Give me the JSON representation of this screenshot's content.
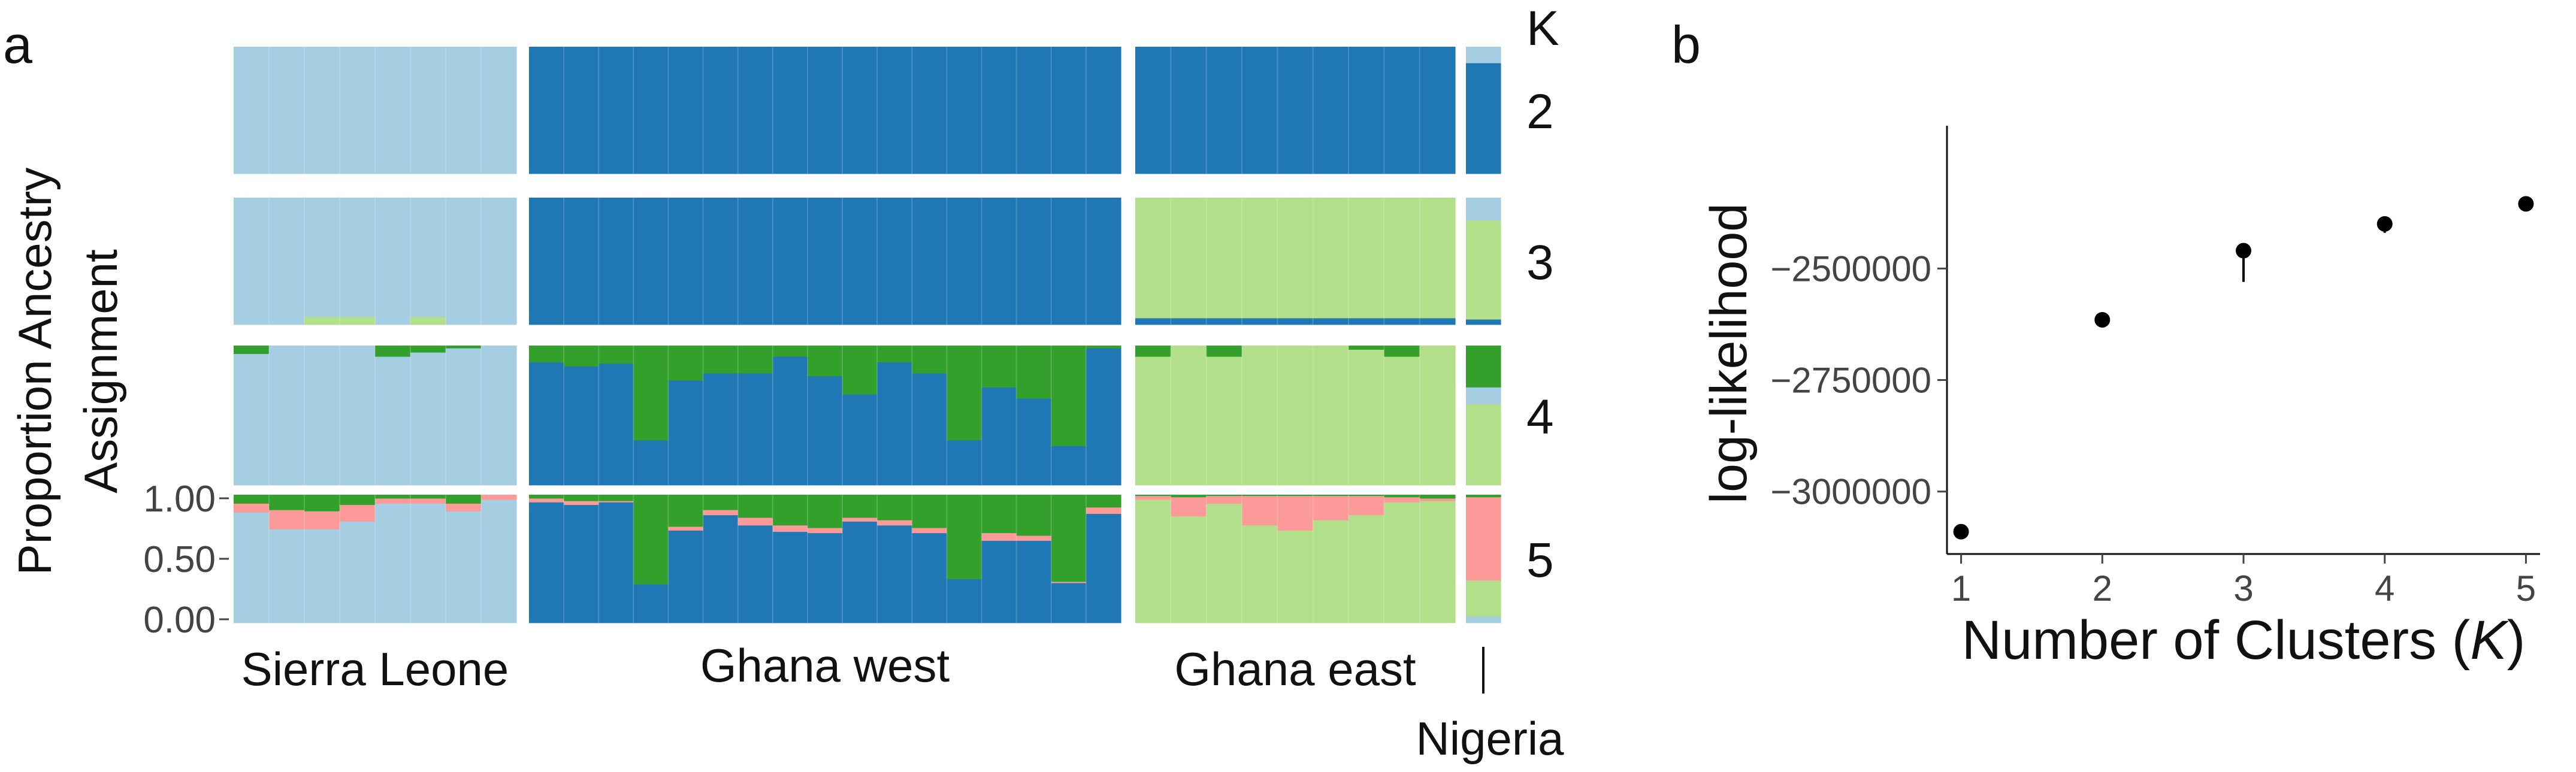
{
  "panel_a": {
    "panel_label": "a",
    "ylabel_line1": "Proportion Ancestry",
    "ylabel_line2": "Assignment",
    "k_header": "K",
    "y_ticks": [
      "1.00",
      "0.50",
      "0.00"
    ],
    "colors": {
      "light_blue": "#a6cee3",
      "dark_blue": "#1f78b4",
      "light_green": "#b2df8a",
      "dark_green": "#33a02c",
      "pink": "#fb9a99"
    }
  },
  "panel_b": {
    "panel_label": "b",
    "ylabel": "log-likelihood",
    "xlabel_prefix": "Number of Clusters (",
    "xlabel_var": "K",
    "xlabel_suffix": ")"
  },
  "chart_data": [
    {
      "type": "bar",
      "subtype": "stacked-structure-plot",
      "populations": [
        {
          "name": "Sierra Leone",
          "n": 8
        },
        {
          "name": "Ghana west",
          "n": 17
        },
        {
          "name": "Ghana east",
          "n": 9
        },
        {
          "name": "Nigeria",
          "n": 1
        }
      ],
      "ylim": [
        0,
        1
      ],
      "rows": [
        {
          "k": 2,
          "pops": [
            {
              "n": 8,
              "layers": [
                {
                  "c": "light_blue",
                  "v": [
                    1,
                    1,
                    1,
                    1,
                    1,
                    1,
                    1,
                    1
                  ]
                }
              ]
            },
            {
              "n": 17,
              "layers": [
                {
                  "c": "dark_blue",
                  "v": [
                    1,
                    1,
                    1,
                    1,
                    1,
                    1,
                    1,
                    1,
                    1,
                    1,
                    1,
                    1,
                    1,
                    1,
                    1,
                    1,
                    1
                  ]
                }
              ]
            },
            {
              "n": 9,
              "layers": [
                {
                  "c": "dark_blue",
                  "v": [
                    1,
                    1,
                    1,
                    1,
                    1,
                    1,
                    1,
                    1,
                    1
                  ]
                }
              ]
            },
            {
              "n": 1,
              "layers": [
                {
                  "c": "light_blue",
                  "v": [
                    0.13
                  ]
                },
                {
                  "c": "dark_blue",
                  "v": [
                    0.87
                  ]
                }
              ]
            }
          ]
        },
        {
          "k": 3,
          "pops": [
            {
              "n": 8,
              "layers": [
                {
                  "c": "light_blue",
                  "v": [
                    1,
                    1,
                    0.94,
                    0.94,
                    1,
                    0.94,
                    1,
                    1
                  ]
                },
                {
                  "c": "light_green",
                  "v": [
                    0,
                    0,
                    0.06,
                    0.06,
                    0,
                    0.06,
                    0,
                    0
                  ]
                }
              ]
            },
            {
              "n": 17,
              "layers": [
                {
                  "c": "dark_blue",
                  "v": [
                    1,
                    1,
                    1,
                    1,
                    1,
                    1,
                    1,
                    1,
                    1,
                    1,
                    1,
                    1,
                    1,
                    1,
                    1,
                    1,
                    1
                  ]
                }
              ]
            },
            {
              "n": 9,
              "layers": [
                {
                  "c": "light_green",
                  "v": [
                    0.95,
                    0.95,
                    0.95,
                    0.95,
                    0.95,
                    0.95,
                    0.95,
                    0.95,
                    0.95
                  ]
                },
                {
                  "c": "dark_blue",
                  "v": [
                    0.05,
                    0.05,
                    0.05,
                    0.05,
                    0.05,
                    0.05,
                    0.05,
                    0.05,
                    0.05
                  ]
                }
              ]
            },
            {
              "n": 1,
              "layers": [
                {
                  "c": "light_blue",
                  "v": [
                    0.18
                  ]
                },
                {
                  "c": "light_green",
                  "v": [
                    0.78
                  ]
                },
                {
                  "c": "dark_blue",
                  "v": [
                    0.04
                  ]
                }
              ]
            }
          ]
        },
        {
          "k": 4,
          "pops": [
            {
              "n": 8,
              "layers": [
                {
                  "c": "dark_green",
                  "v": [
                    0.06,
                    0,
                    0,
                    0,
                    0.08,
                    0.05,
                    0.02,
                    0
                  ]
                },
                {
                  "c": "light_blue",
                  "v": [
                    0.94,
                    1,
                    1,
                    1,
                    0.92,
                    0.95,
                    0.98,
                    1
                  ]
                }
              ]
            },
            {
              "n": 17,
              "layers": [
                {
                  "c": "dark_green",
                  "v": [
                    0.12,
                    0.15,
                    0.13,
                    0.68,
                    0.25,
                    0.2,
                    0.2,
                    0.08,
                    0.22,
                    0.35,
                    0.12,
                    0.2,
                    0.68,
                    0.3,
                    0.38,
                    0.72,
                    0.02
                  ]
                },
                {
                  "c": "dark_blue",
                  "v": [
                    0.88,
                    0.85,
                    0.87,
                    0.32,
                    0.75,
                    0.8,
                    0.8,
                    0.92,
                    0.78,
                    0.65,
                    0.88,
                    0.8,
                    0.32,
                    0.7,
                    0.62,
                    0.28,
                    0.98
                  ]
                }
              ]
            },
            {
              "n": 9,
              "layers": [
                {
                  "c": "dark_green",
                  "v": [
                    0.08,
                    0,
                    0.08,
                    0,
                    0,
                    0,
                    0.03,
                    0.08,
                    0
                  ]
                },
                {
                  "c": "light_green",
                  "v": [
                    0.92,
                    1,
                    0.92,
                    1,
                    1,
                    1,
                    0.97,
                    0.92,
                    1
                  ]
                }
              ]
            },
            {
              "n": 1,
              "layers": [
                {
                  "c": "dark_green",
                  "v": [
                    0.3
                  ]
                },
                {
                  "c": "light_blue",
                  "v": [
                    0.12
                  ]
                },
                {
                  "c": "light_green",
                  "v": [
                    0.58
                  ]
                }
              ]
            }
          ]
        },
        {
          "k": 5,
          "pops": [
            {
              "n": 8,
              "layers": [
                {
                  "c": "dark_green",
                  "v": [
                    0.07,
                    0.12,
                    0.13,
                    0.08,
                    0.03,
                    0.03,
                    0.07,
                    0
                  ]
                },
                {
                  "c": "pink",
                  "v": [
                    0.07,
                    0.15,
                    0.14,
                    0.13,
                    0.04,
                    0.04,
                    0.06,
                    0.04
                  ]
                },
                {
                  "c": "light_blue",
                  "v": [
                    0.86,
                    0.73,
                    0.73,
                    0.79,
                    0.93,
                    0.93,
                    0.87,
                    0.96
                  ]
                }
              ]
            },
            {
              "n": 17,
              "layers": [
                {
                  "c": "dark_green",
                  "v": [
                    0.03,
                    0.05,
                    0.05,
                    0.7,
                    0.25,
                    0.12,
                    0.18,
                    0.24,
                    0.26,
                    0.18,
                    0.2,
                    0.26,
                    0.66,
                    0.3,
                    0.32,
                    0.68,
                    0.1
                  ]
                },
                {
                  "c": "pink",
                  "v": [
                    0.03,
                    0.03,
                    0.01,
                    0,
                    0.03,
                    0.04,
                    0.06,
                    0.05,
                    0.04,
                    0.03,
                    0.04,
                    0.04,
                    0,
                    0.06,
                    0.04,
                    0.01,
                    0.05
                  ]
                },
                {
                  "c": "dark_blue",
                  "v": [
                    0.94,
                    0.92,
                    0.94,
                    0.3,
                    0.72,
                    0.84,
                    0.76,
                    0.71,
                    0.7,
                    0.79,
                    0.76,
                    0.7,
                    0.34,
                    0.64,
                    0.64,
                    0.31,
                    0.85
                  ]
                }
              ]
            },
            {
              "n": 9,
              "layers": [
                {
                  "c": "dark_green",
                  "v": [
                    0.01,
                    0.02,
                    0.01,
                    0.01,
                    0.01,
                    0.01,
                    0.01,
                    0.02,
                    0.03
                  ]
                },
                {
                  "c": "pink",
                  "v": [
                    0.03,
                    0.15,
                    0.06,
                    0.23,
                    0.27,
                    0.19,
                    0.15,
                    0.04,
                    0.02
                  ]
                },
                {
                  "c": "light_green",
                  "v": [
                    0.96,
                    0.83,
                    0.93,
                    0.76,
                    0.72,
                    0.8,
                    0.84,
                    0.94,
                    0.95
                  ]
                }
              ]
            },
            {
              "n": 1,
              "layers": [
                {
                  "c": "dark_green",
                  "v": [
                    0.02
                  ]
                },
                {
                  "c": "pink",
                  "v": [
                    0.65
                  ]
                },
                {
                  "c": "light_green",
                  "v": [
                    0.28
                  ]
                },
                {
                  "c": "light_blue",
                  "v": [
                    0.05
                  ]
                }
              ]
            }
          ]
        }
      ]
    },
    {
      "type": "scatter",
      "x": [
        1,
        2,
        3,
        4,
        5
      ],
      "y": [
        -3090000,
        -2615000,
        -2460000,
        -2400000,
        -2355000
      ],
      "error_low": [
        -3090000,
        -2615000,
        -2530000,
        -2420000,
        -2370000
      ],
      "error_high": [
        -3090000,
        -2615000,
        -2455000,
        -2395000,
        -2350000
      ],
      "x_ticks": [
        1,
        2,
        3,
        4,
        5
      ],
      "y_ticks": [
        -3000000,
        -2750000,
        -2500000
      ],
      "y_tick_labels": [
        "−3000000",
        "−2750000",
        "−2500000"
      ],
      "xlim": [
        0.9,
        5.1
      ],
      "ylim": [
        -3140000,
        -2180000
      ],
      "grid": false
    }
  ]
}
